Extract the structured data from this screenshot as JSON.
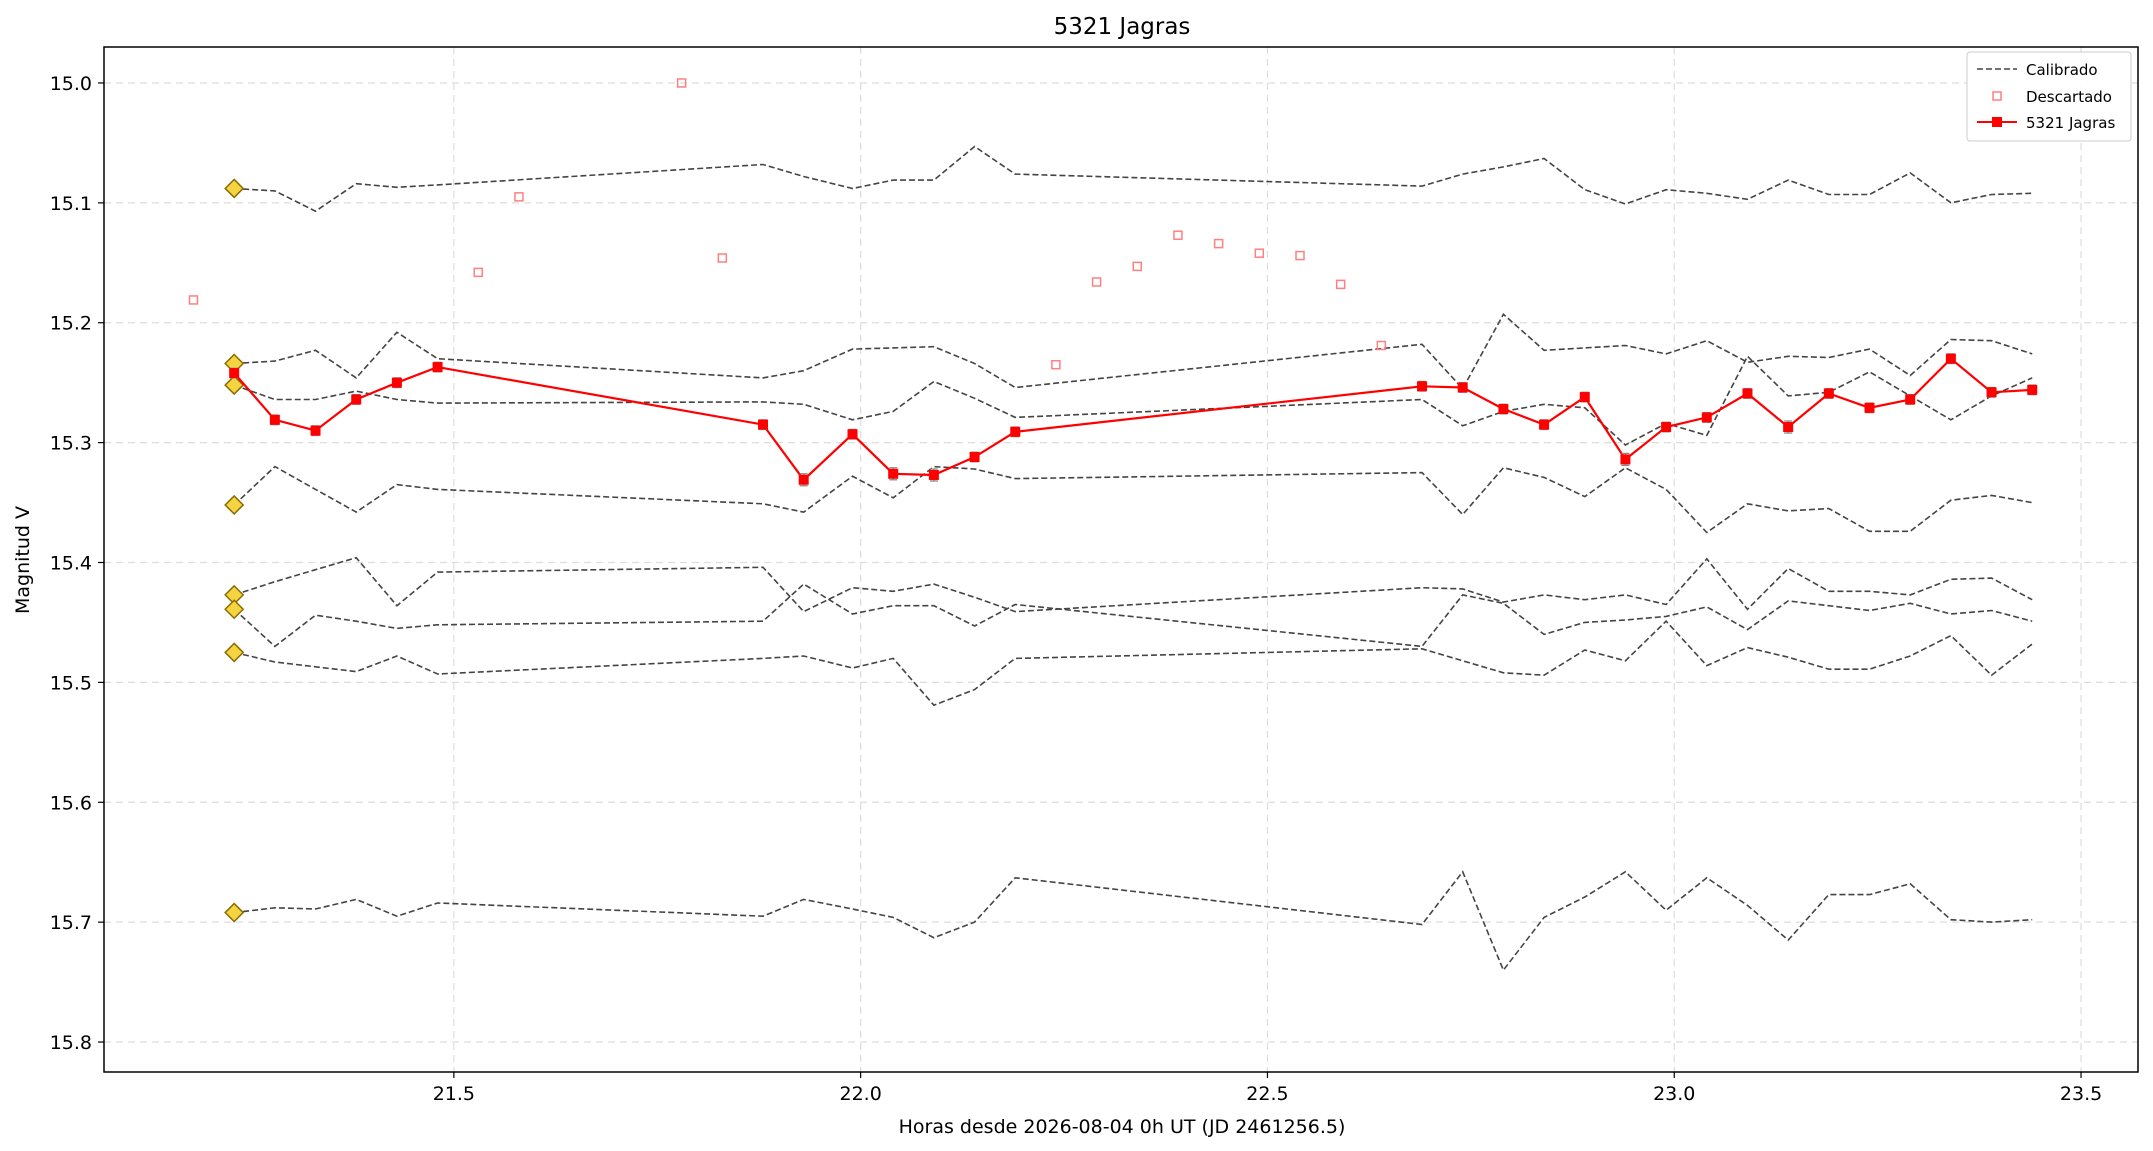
{
  "chart_data": {
    "type": "line",
    "title": "5321 Jagras",
    "xlabel": "Horas desde 2026-08-04 0h UT (JD 2461256.5)",
    "ylabel": "Magnitud V",
    "xlim": [
      21.07,
      23.57
    ],
    "ylim": [
      15.825,
      14.97
    ],
    "y_inverted": true,
    "xticks": [
      21.5,
      22.0,
      22.5,
      23.0,
      23.5
    ],
    "xtick_labels": [
      "21.5",
      "22.0",
      "22.5",
      "23.0",
      "23.5"
    ],
    "yticks": [
      15.0,
      15.1,
      15.2,
      15.3,
      15.4,
      15.5,
      15.6,
      15.7,
      15.8
    ],
    "ytick_labels": [
      "15.0",
      "15.1",
      "15.2",
      "15.3",
      "15.4",
      "15.5",
      "15.6",
      "15.7",
      "15.8"
    ],
    "grid": true,
    "legend": {
      "position": "top-right",
      "entries": [
        "Calibrado",
        "Descartado",
        "5321 Jagras"
      ]
    },
    "colors": {
      "calibrated": "#444444",
      "discarded": "#ff8080",
      "target": "#ff0000",
      "marker_fill": "#f5d442",
      "marker_edge": "#8a6d00",
      "grid": "#dddddd"
    },
    "reference_markers": {
      "x": 21.23,
      "y": [
        15.088,
        15.234,
        15.252,
        15.352,
        15.427,
        15.439,
        15.475,
        15.692
      ]
    },
    "calibrated_x": [
      21.23,
      21.28,
      21.33,
      21.38,
      21.43,
      21.48,
      21.88,
      21.93,
      21.99,
      22.04,
      22.09,
      22.14,
      22.19,
      22.69,
      22.74,
      22.79,
      22.84,
      22.89,
      22.94,
      22.99,
      23.04,
      23.09,
      23.14,
      23.19,
      23.24,
      23.29,
      23.34,
      23.39,
      23.44
    ],
    "calibrated_series": [
      [
        15.088,
        15.09,
        15.107,
        15.084,
        15.087,
        15.085,
        15.068,
        15.078,
        15.088,
        15.081,
        15.081,
        15.053,
        15.076,
        15.086,
        15.076,
        15.07,
        15.063,
        15.089,
        15.101,
        15.089,
        15.092,
        15.097,
        15.081,
        15.093,
        15.093,
        15.075,
        15.1,
        15.093,
        15.092
      ],
      [
        15.234,
        15.232,
        15.223,
        15.246,
        15.208,
        15.23,
        15.246,
        15.24,
        15.222,
        15.221,
        15.22,
        15.234,
        15.254,
        15.218,
        15.255,
        15.193,
        15.223,
        15.221,
        15.219,
        15.226,
        15.215,
        15.233,
        15.228,
        15.229,
        15.222,
        15.244,
        15.214,
        15.215,
        15.226
      ],
      [
        15.252,
        15.264,
        15.264,
        15.257,
        15.264,
        15.267,
        15.266,
        15.268,
        15.281,
        15.274,
        15.249,
        15.263,
        15.279,
        15.264,
        15.286,
        15.274,
        15.268,
        15.271,
        15.302,
        15.284,
        15.294,
        15.228,
        15.261,
        15.258,
        15.241,
        15.261,
        15.281,
        15.261,
        15.246
      ],
      [
        15.352,
        15.32,
        15.339,
        15.358,
        15.335,
        15.339,
        15.351,
        15.358,
        15.328,
        15.346,
        15.32,
        15.322,
        15.33,
        15.325,
        15.36,
        15.321,
        15.329,
        15.345,
        15.321,
        15.339,
        15.375,
        15.351,
        15.357,
        15.355,
        15.374,
        15.374,
        15.348,
        15.344,
        15.35
      ],
      [
        15.427,
        15.416,
        15.406,
        15.396,
        15.436,
        15.408,
        15.404,
        15.441,
        15.421,
        15.424,
        15.418,
        15.429,
        15.441,
        15.421,
        15.422,
        15.433,
        15.427,
        15.431,
        15.427,
        15.435,
        15.397,
        15.439,
        15.405,
        15.424,
        15.424,
        15.427,
        15.414,
        15.413,
        15.431
      ],
      [
        15.439,
        15.47,
        15.444,
        15.449,
        15.455,
        15.452,
        15.449,
        15.418,
        15.443,
        15.436,
        15.436,
        15.453,
        15.435,
        15.47,
        15.427,
        15.434,
        15.46,
        15.45,
        15.448,
        15.445,
        15.437,
        15.456,
        15.432,
        15.436,
        15.44,
        15.434,
        15.443,
        15.44,
        15.449
      ],
      [
        15.475,
        15.483,
        15.487,
        15.491,
        15.478,
        15.493,
        15.48,
        15.478,
        15.488,
        15.48,
        15.519,
        15.506,
        15.48,
        15.472,
        15.482,
        15.492,
        15.494,
        15.473,
        15.482,
        15.449,
        15.486,
        15.471,
        15.479,
        15.489,
        15.489,
        15.478,
        15.461,
        15.494,
        15.468
      ],
      [
        15.692,
        15.688,
        15.689,
        15.681,
        15.695,
        15.684,
        15.695,
        15.681,
        15.689,
        15.696,
        15.713,
        15.7,
        15.663,
        15.702,
        15.658,
        15.74,
        15.696,
        15.679,
        15.658,
        15.69,
        15.663,
        15.686,
        15.715,
        15.677,
        15.677,
        15.668,
        15.698,
        15.7,
        15.698
      ]
    ],
    "discarded": {
      "x": [
        21.18,
        21.53,
        21.58,
        21.78,
        21.83,
        22.24,
        22.29,
        22.34,
        22.39,
        22.44,
        22.49,
        22.54,
        22.59,
        22.64
      ],
      "y": [
        15.181,
        15.158,
        15.095,
        15.0,
        15.146,
        15.235,
        15.166,
        15.153,
        15.127,
        15.134,
        15.142,
        15.144,
        15.168,
        15.219
      ]
    },
    "target": {
      "name": "5321 Jagras",
      "x": [
        21.23,
        21.28,
        21.33,
        21.38,
        21.43,
        21.48,
        21.88,
        21.93,
        21.99,
        22.04,
        22.09,
        22.14,
        22.19,
        22.69,
        22.74,
        22.79,
        22.84,
        22.89,
        22.94,
        22.99,
        23.04,
        23.09,
        23.14,
        23.19,
        23.24,
        23.29,
        23.34,
        23.39,
        23.44
      ],
      "y": [
        15.242,
        15.281,
        15.29,
        15.264,
        15.25,
        15.237,
        15.285,
        15.331,
        15.293,
        15.326,
        15.327,
        15.312,
        15.291,
        15.253,
        15.254,
        15.272,
        15.285,
        15.262,
        15.314,
        15.287,
        15.279,
        15.259,
        15.287,
        15.259,
        15.271,
        15.264,
        15.23,
        15.258,
        15.256
      ],
      "yerr": [
        0.004,
        0.004,
        0.004,
        0.004,
        0.004,
        0.004,
        0.004,
        0.005,
        0.004,
        0.005,
        0.005,
        0.004,
        0.004,
        0.004,
        0.004,
        0.004,
        0.004,
        0.004,
        0.005,
        0.004,
        0.004,
        0.004,
        0.005,
        0.004,
        0.004,
        0.004,
        0.004,
        0.004,
        0.004
      ]
    }
  }
}
